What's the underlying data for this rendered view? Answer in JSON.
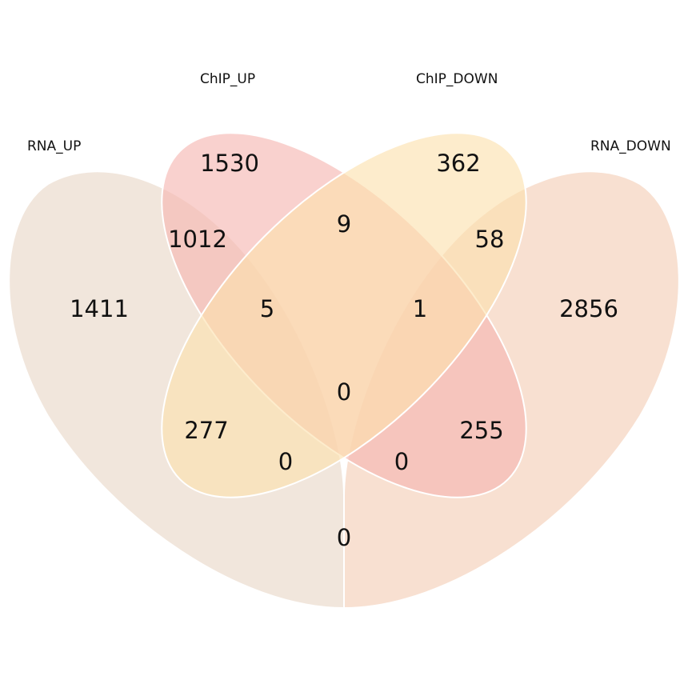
{
  "sets": [
    {
      "id": "rna_up",
      "label": "RNA_UP",
      "color": "#e9d6c6"
    },
    {
      "id": "chip_up",
      "label": "ChIP_UP",
      "color": "#f6b4b0"
    },
    {
      "id": "chip_down",
      "label": "ChIP_DOWN",
      "color": "#fbe0ac"
    },
    {
      "id": "rna_down",
      "label": "RNA_DOWN",
      "color": "#f4cdb5"
    }
  ],
  "regions": [
    {
      "id": "rna_up_only",
      "sets": [
        "RNA_UP"
      ],
      "count": "1411"
    },
    {
      "id": "chip_up_only",
      "sets": [
        "ChIP_UP"
      ],
      "count": "1530"
    },
    {
      "id": "chip_down_only",
      "sets": [
        "ChIP_DOWN"
      ],
      "count": "362"
    },
    {
      "id": "rna_down_only",
      "sets": [
        "RNA_DOWN"
      ],
      "count": "2856"
    },
    {
      "id": "rna_up_chip_up",
      "sets": [
        "RNA_UP",
        "ChIP_UP"
      ],
      "count": "1012"
    },
    {
      "id": "chip_up_chip_down",
      "sets": [
        "ChIP_UP",
        "ChIP_DOWN"
      ],
      "count": "9"
    },
    {
      "id": "chip_down_rna_down",
      "sets": [
        "ChIP_DOWN",
        "RNA_DOWN"
      ],
      "count": "58"
    },
    {
      "id": "rna_up_chip_up_chip_down",
      "sets": [
        "RNA_UP",
        "ChIP_UP",
        "ChIP_DOWN"
      ],
      "count": "5"
    },
    {
      "id": "chip_up_chip_down_rna_down",
      "sets": [
        "ChIP_UP",
        "ChIP_DOWN",
        "RNA_DOWN"
      ],
      "count": "1"
    },
    {
      "id": "rna_up_chip_down",
      "sets": [
        "RNA_UP",
        "ChIP_DOWN"
      ],
      "count": "277"
    },
    {
      "id": "chip_up_rna_down",
      "sets": [
        "ChIP_UP",
        "RNA_DOWN"
      ],
      "count": "255"
    },
    {
      "id": "all_four",
      "sets": [
        "RNA_UP",
        "ChIP_UP",
        "ChIP_DOWN",
        "RNA_DOWN"
      ],
      "count": "0"
    },
    {
      "id": "rna_up_chip_down_rna_down",
      "sets": [
        "RNA_UP",
        "ChIP_DOWN",
        "RNA_DOWN"
      ],
      "count": "0"
    },
    {
      "id": "rna_up_chip_up_rna_down",
      "sets": [
        "RNA_UP",
        "ChIP_UP",
        "RNA_DOWN"
      ],
      "count": "0"
    },
    {
      "id": "rna_up_rna_down",
      "sets": [
        "RNA_UP",
        "RNA_DOWN"
      ],
      "count": "0"
    }
  ]
}
